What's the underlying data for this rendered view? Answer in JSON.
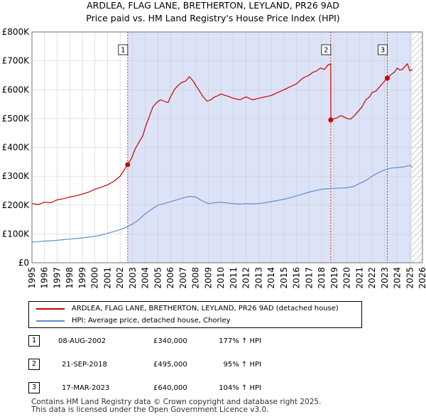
{
  "title": {
    "line1": "ARDLEA, FLAG LANE, BRETHERTON, LEYLAND, PR26 9AD",
    "line2": "Price paid vs. HM Land Registry's House Price Index (HPI)"
  },
  "colors": {
    "property": "#cc0000",
    "hpi": "#5b8fcf",
    "shade": "#dce3f7",
    "grid": "#cccccc",
    "hatch": "#999999",
    "marker_line": "#cc0000"
  },
  "chart_data": {
    "type": "line",
    "title": "ARDLEA, FLAG LANE, BRETHERTON, LEYLAND, PR26 9AD — Price paid vs. HM Land Registry's House Price Index (HPI)",
    "xlabel": "",
    "ylabel": "",
    "xlim": [
      1995,
      2026
    ],
    "ylim": [
      0,
      800000
    ],
    "x_ticks": [
      1995,
      1996,
      1997,
      1998,
      1999,
      2000,
      2001,
      2002,
      2003,
      2004,
      2005,
      2006,
      2007,
      2008,
      2009,
      2010,
      2011,
      2012,
      2013,
      2014,
      2015,
      2016,
      2017,
      2018,
      2019,
      2020,
      2021,
      2022,
      2023,
      2024,
      2025,
      2026
    ],
    "y_ticks": [
      {
        "value": 0,
        "label": "£0"
      },
      {
        "value": 100000,
        "label": "£100K"
      },
      {
        "value": 200000,
        "label": "£200K"
      },
      {
        "value": 300000,
        "label": "£300K"
      },
      {
        "value": 400000,
        "label": "£400K"
      },
      {
        "value": 500000,
        "label": "£500K"
      },
      {
        "value": 600000,
        "label": "£600K"
      },
      {
        "value": 700000,
        "label": "£700K"
      },
      {
        "value": 800000,
        "label": "£800K"
      }
    ],
    "grid": true,
    "shaded_range": [
      2002.6,
      2025.15
    ],
    "hatched_from": 2025.15,
    "series": [
      {
        "name": "ARDLEA, FLAG LANE, BRETHERTON, LEYLAND, PR26 9AD (detached house)",
        "x": [
          1995.0,
          1995.5,
          1996.0,
          1996.5,
          1997.0,
          1997.5,
          1998.0,
          1998.5,
          1999.0,
          1999.5,
          2000.0,
          2000.5,
          2001.0,
          2001.5,
          2002.0,
          2002.3,
          2002.6,
          2002.9,
          2003.2,
          2003.5,
          2003.8,
          2004.0,
          2004.3,
          2004.6,
          2004.9,
          2005.2,
          2005.5,
          2005.8,
          2006.0,
          2006.3,
          2006.6,
          2006.9,
          2007.2,
          2007.5,
          2007.8,
          2008.0,
          2008.3,
          2008.6,
          2008.9,
          2009.2,
          2009.5,
          2009.8,
          2010.0,
          2010.5,
          2011.0,
          2011.5,
          2012.0,
          2012.5,
          2013.0,
          2013.5,
          2014.0,
          2014.5,
          2015.0,
          2015.5,
          2016.0,
          2016.5,
          2017.0,
          2017.3,
          2017.6,
          2017.9,
          2018.2,
          2018.5,
          2018.72,
          2018.73,
          2018.9,
          2019.2,
          2019.5,
          2019.8,
          2020.0,
          2020.3,
          2020.6,
          2020.9,
          2021.2,
          2021.5,
          2021.8,
          2022.0,
          2022.3,
          2022.6,
          2022.9,
          2023.21,
          2023.5,
          2023.8,
          2024.0,
          2024.2,
          2024.4,
          2024.6,
          2024.8,
          2025.0,
          2025.2
        ],
        "values": [
          205000,
          202000,
          210000,
          208000,
          218000,
          222000,
          228000,
          232000,
          238000,
          245000,
          255000,
          262000,
          270000,
          282000,
          300000,
          320000,
          340000,
          362000,
          395000,
          418000,
          440000,
          470000,
          505000,
          540000,
          555000,
          565000,
          560000,
          555000,
          575000,
          600000,
          615000,
          625000,
          630000,
          645000,
          630000,
          615000,
          595000,
          575000,
          560000,
          565000,
          575000,
          580000,
          585000,
          578000,
          570000,
          565000,
          575000,
          565000,
          570000,
          575000,
          580000,
          590000,
          600000,
          610000,
          620000,
          640000,
          650000,
          660000,
          665000,
          675000,
          670000,
          685000,
          690000,
          495000,
          498000,
          502000,
          510000,
          505000,
          500000,
          498000,
          510000,
          525000,
          540000,
          565000,
          575000,
          590000,
          595000,
          610000,
          625000,
          640000,
          652000,
          662000,
          675000,
          668000,
          670000,
          680000,
          690000,
          665000,
          670000
        ]
      },
      {
        "name": "HPI: Average price, detached house, Chorley",
        "x": [
          1995.0,
          1995.5,
          1996.0,
          1996.5,
          1997.0,
          1997.5,
          1998.0,
          1998.5,
          1999.0,
          1999.5,
          2000.0,
          2000.5,
          2001.0,
          2001.5,
          2002.0,
          2002.5,
          2003.0,
          2003.5,
          2004.0,
          2004.5,
          2005.0,
          2005.5,
          2006.0,
          2006.5,
          2007.0,
          2007.5,
          2008.0,
          2008.5,
          2009.0,
          2009.5,
          2010.0,
          2010.5,
          2011.0,
          2011.5,
          2012.0,
          2012.5,
          2013.0,
          2013.5,
          2014.0,
          2014.5,
          2015.0,
          2015.5,
          2016.0,
          2016.5,
          2017.0,
          2017.5,
          2018.0,
          2018.5,
          2019.0,
          2019.5,
          2020.0,
          2020.5,
          2021.0,
          2021.5,
          2022.0,
          2022.5,
          2023.0,
          2023.5,
          2024.0,
          2024.5,
          2025.0,
          2025.2
        ],
        "values": [
          72000,
          73000,
          75000,
          76000,
          78000,
          80000,
          82000,
          84000,
          86000,
          89000,
          92000,
          96000,
          102000,
          108000,
          115000,
          123000,
          135000,
          150000,
          170000,
          185000,
          200000,
          205000,
          212000,
          218000,
          225000,
          230000,
          228000,
          215000,
          205000,
          208000,
          210000,
          207000,
          205000,
          203000,
          205000,
          204000,
          205000,
          208000,
          212000,
          216000,
          220000,
          225000,
          232000,
          238000,
          245000,
          250000,
          255000,
          257000,
          258000,
          259000,
          260000,
          264000,
          275000,
          285000,
          300000,
          312000,
          322000,
          328000,
          330000,
          332000,
          338000,
          330000
        ]
      }
    ],
    "sales": [
      {
        "id": "1",
        "x": 2002.6,
        "value": 340000
      },
      {
        "id": "2",
        "x": 2018.72,
        "value": 495000
      },
      {
        "id": "3",
        "x": 2023.21,
        "value": 640000
      }
    ]
  },
  "legend": {
    "property_label": "ARDLEA, FLAG LANE, BRETHERTON, LEYLAND, PR26 9AD (detached house)",
    "hpi_label": "HPI: Average price, detached house, Chorley"
  },
  "transactions": [
    {
      "id": "1",
      "date": "08-AUG-2002",
      "price": "£340,000",
      "hpi": "177% ↑ HPI"
    },
    {
      "id": "2",
      "date": "21-SEP-2018",
      "price": "£495,000",
      "hpi": "95% ↑ HPI"
    },
    {
      "id": "3",
      "date": "17-MAR-2023",
      "price": "£640,000",
      "hpi": "104% ↑ HPI"
    }
  ],
  "footer": {
    "line1": "Contains HM Land Registry data © Crown copyright and database right 2025.",
    "line2": "This data is licensed under the Open Government Licence v3.0."
  }
}
